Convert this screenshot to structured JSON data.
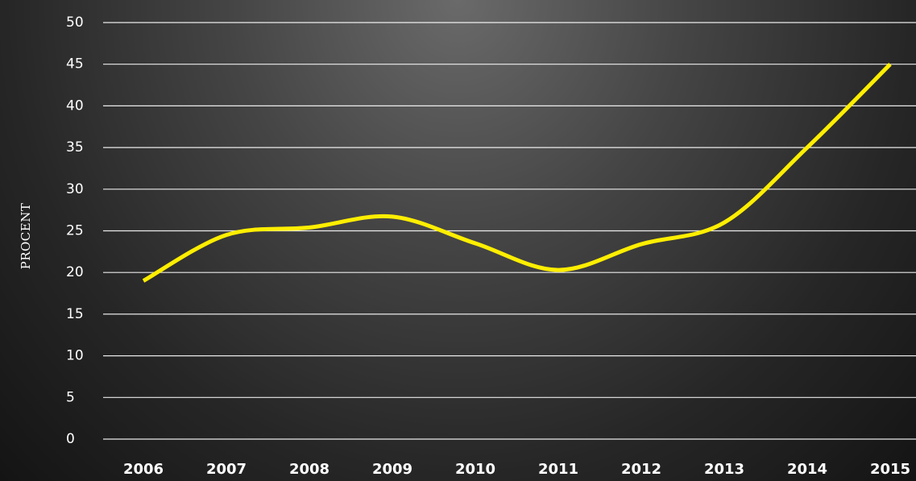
{
  "chart_data": {
    "type": "line",
    "y_label": "PROCENT",
    "categories": [
      "2006",
      "2007",
      "2008",
      "2009",
      "2010",
      "2011",
      "2012",
      "2013",
      "2014",
      "2015"
    ],
    "series": [
      {
        "name": "Procent",
        "color": "#ffee00",
        "values": [
          19,
          24.5,
          25.4,
          26.7,
          23.5,
          20.3,
          23.4,
          26,
          35,
          45
        ]
      }
    ],
    "ylim": [
      0,
      50
    ],
    "yticks": [
      0,
      5,
      10,
      15,
      20,
      25,
      30,
      35,
      40,
      45,
      50
    ],
    "grid": true,
    "legend": false
  }
}
